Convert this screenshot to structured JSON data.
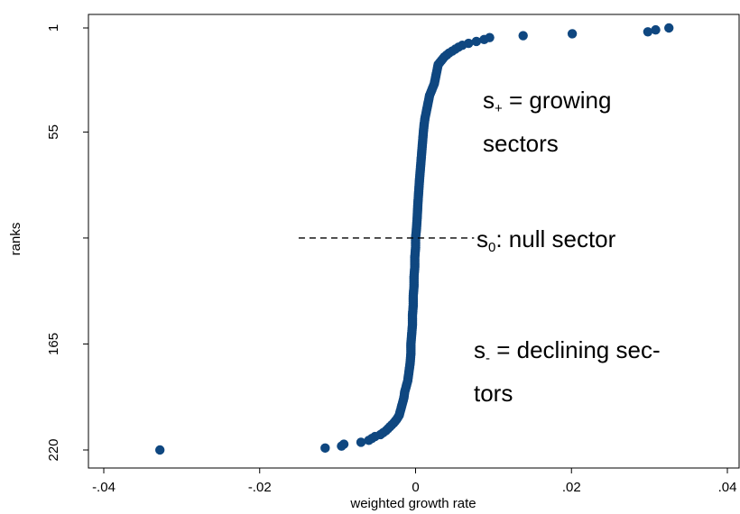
{
  "chart_data": {
    "type": "scatter",
    "title": "",
    "xlabel": "weighted growth rate",
    "ylabel": "ranks",
    "xlim": [
      -0.04,
      0.04
    ],
    "ylim": [
      1,
      220
    ],
    "y_reversed": true,
    "x_ticks": [
      -0.04,
      -0.02,
      0,
      0.02,
      0.04
    ],
    "x_tick_labels": [
      "-.04",
      "-.02",
      "0",
      ".02",
      ".04"
    ],
    "y_ticks": [
      1,
      55,
      110,
      165,
      220
    ],
    "y_tick_labels": [
      "1",
      "55",
      "",
      "165",
      "220"
    ],
    "grid": false,
    "marker_color": "#0f4780",
    "series": [
      {
        "points": [
          [
            0.0325,
            1
          ],
          [
            0.0308,
            2
          ],
          [
            0.0298,
            3
          ],
          [
            0.0201,
            4
          ],
          [
            0.0138,
            5
          ],
          [
            0.0095,
            6
          ],
          [
            0.0088,
            7
          ],
          [
            0.0078,
            8
          ],
          [
            0.0068,
            9
          ],
          [
            0.006,
            10
          ],
          [
            0.0055,
            11
          ],
          [
            0.0051,
            12
          ],
          [
            0.0047,
            13
          ],
          [
            0.0043,
            14
          ],
          [
            0.004,
            15
          ],
          [
            0.0037,
            16
          ],
          [
            0.0035,
            17
          ],
          [
            0.0033,
            18
          ],
          [
            0.0031,
            19
          ],
          [
            0.0029,
            20
          ],
          [
            0.0028,
            22
          ],
          [
            0.0027,
            24
          ],
          [
            0.0026,
            26
          ],
          [
            0.0025,
            28
          ],
          [
            0.0024,
            30
          ],
          [
            0.0022,
            32
          ],
          [
            0.002,
            34
          ],
          [
            0.0018,
            36
          ],
          [
            0.0017,
            38
          ],
          [
            0.0016,
            40
          ],
          [
            0.0015,
            42
          ],
          [
            0.0014,
            44
          ],
          [
            0.0013,
            46
          ],
          [
            0.0012,
            48
          ],
          [
            0.0011,
            51
          ],
          [
            0.001,
            55
          ],
          [
            0.0009,
            60
          ],
          [
            0.0008,
            65
          ],
          [
            0.0007,
            70
          ],
          [
            0.0006,
            75
          ],
          [
            0.0005,
            80
          ],
          [
            0.0004,
            86
          ],
          [
            0.0003,
            92
          ],
          [
            0.0002,
            100
          ],
          [
            0.0001,
            106
          ],
          [
            0.0,
            110
          ],
          [
            0.0,
            115
          ],
          [
            -0.0001,
            120
          ],
          [
            -0.0001,
            125
          ],
          [
            -0.0002,
            130
          ],
          [
            -0.0002,
            135
          ],
          [
            -0.0003,
            140
          ],
          [
            -0.0003,
            145
          ],
          [
            -0.0004,
            150
          ],
          [
            -0.0004,
            155
          ],
          [
            -0.0005,
            160
          ],
          [
            -0.0006,
            165
          ],
          [
            -0.0006,
            170
          ],
          [
            -0.0007,
            175
          ],
          [
            -0.0008,
            178
          ],
          [
            -0.0009,
            181
          ],
          [
            -0.001,
            184
          ],
          [
            -0.0012,
            187
          ],
          [
            -0.0014,
            190
          ],
          [
            -0.0015,
            193
          ],
          [
            -0.0017,
            196
          ],
          [
            -0.0019,
            199
          ],
          [
            -0.0021,
            202
          ],
          [
            -0.0024,
            204
          ],
          [
            -0.0028,
            206
          ],
          [
            -0.0033,
            208
          ],
          [
            -0.0038,
            210
          ],
          [
            -0.0045,
            212
          ],
          [
            -0.0052,
            213
          ],
          [
            -0.006,
            215
          ],
          [
            -0.007,
            216
          ],
          [
            -0.0092,
            217
          ],
          [
            -0.0095,
            218
          ],
          [
            -0.0116,
            219
          ],
          [
            -0.0328,
            220
          ]
        ]
      }
    ],
    "annotations": [
      {
        "text": "s",
        "sub": "+",
        "rest": " = growing"
      },
      {
        "text": "sectors"
      },
      {
        "text": "s",
        "sub": "0",
        "rest": ": null sector"
      },
      {
        "text": "s",
        "sub": "-",
        "rest": " = declining sec-"
      },
      {
        "text": "tors"
      }
    ],
    "reference_line": {
      "y": 110,
      "x_from": -0.015,
      "x_to": 0.0075,
      "style": "dashed"
    }
  }
}
